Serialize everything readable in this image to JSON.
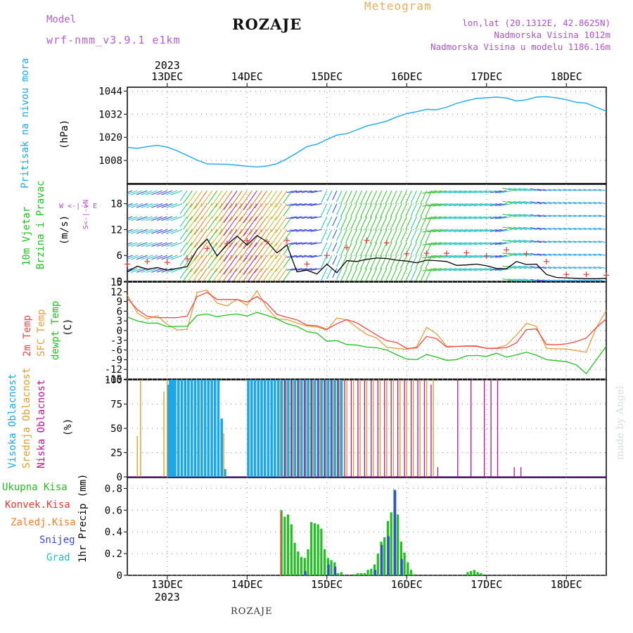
{
  "header": {
    "model_label": "Model",
    "model_name": "wrf-nmm_v3.9.1 e1km",
    "station": "ROZAJE",
    "meteogram": "Meteogram",
    "lonlat": "lon,lat (20.1312E, 42.8625N)",
    "altitude": "Nadmorska Visina 1012m",
    "model_altitude": "Nadmorska Visina u modelu 1186.16m"
  },
  "time_axis": {
    "year": "2023",
    "days": [
      "13DEC",
      "14DEC",
      "15DEC",
      "16DEC",
      "17DEC",
      "18DEC"
    ],
    "x_range_hours": [
      -12,
      132
    ]
  },
  "panels": {
    "pressure": {
      "ylabel_title": "Pritisak na nivou mora",
      "unit": "(hPa)",
      "ticks": [
        "1044",
        "1032",
        "1020",
        "1008"
      ],
      "color": "#1ca8e8"
    },
    "wind": {
      "ylabel_line1": "10m Vjetar",
      "ylabel_line2": "Brzina i Pravac",
      "unit": "(m/s)",
      "ticks": [
        "18",
        "12",
        "6",
        "0"
      ],
      "compass": "W <-|-> E",
      "compass_v": "S<-|->N"
    },
    "temp": {
      "label_2m": "2m Temp",
      "label_sfc": "SFC Temp",
      "label_dew": "dewpt Temp",
      "unit": "(C)",
      "ticks": [
        "15",
        "12",
        "9",
        "6",
        "3",
        "0",
        "-3",
        "-6",
        "-9",
        "-12",
        "-15"
      ]
    },
    "cloud": {
      "label_high": "Visoka Oblacnost",
      "label_mid": "Srednja Oblacnost",
      "label_low": "Niska Oblacnost",
      "unit": "(%)",
      "ticks": [
        "100",
        "75",
        "50",
        "25",
        "0"
      ]
    },
    "precip": {
      "legend": [
        "Ukupna Kisa",
        "Konvek.Kisa",
        "Zaledj.Kisa",
        "Snijeg",
        "Grad"
      ],
      "ylabel": "1hr Precip (mm)",
      "ticks": [
        "0.8",
        "0.6",
        "0.4",
        "0.2",
        "0"
      ]
    }
  },
  "colors": {
    "pressure": "#1ca8e8",
    "wind_speed": "#000000",
    "wind_gust": "#e83838",
    "temp_2m": "#e84848",
    "temp_sfc": "#e0a040",
    "temp_dew": "#20c020",
    "cloud_high": "#1ca8e8",
    "cloud_mid": "#d8a030",
    "cloud_low": "#c01090",
    "rain_total": "#20c020",
    "rain_conv": "#e83838",
    "rain_freezing": "#f08030",
    "snow": "#3848d8",
    "hail": "#20c0c0",
    "title_purple": "#b050d0",
    "meteogram_orange": "#e0b060"
  },
  "footer": {
    "station": "ROZAJE",
    "made_by": "made by Angel"
  },
  "chart_data": [
    {
      "type": "line",
      "title": "Pritisak na nivou mora",
      "ylabel": "(hPa)",
      "ylim": [
        996,
        1046
      ],
      "x_unit": "hours from 13DEC 00",
      "series": [
        {
          "name": "Pritisak na nivou mora",
          "x": [
            -12,
            -9,
            -6,
            -3,
            0,
            3,
            6,
            9,
            12,
            15,
            18,
            21,
            24,
            27,
            30,
            33,
            36,
            39,
            42,
            45,
            48,
            51,
            54,
            57,
            60,
            63,
            66,
            69,
            72,
            75,
            78,
            81,
            84,
            87,
            90,
            93,
            96,
            99,
            102,
            105,
            108,
            111,
            114,
            117,
            120,
            123,
            126,
            129,
            132
          ],
          "values": [
            1014.8,
            1014.3,
            1015.2,
            1015.8,
            1014.9,
            1013.0,
            1010.6,
            1008.2,
            1006.2,
            1006.1,
            1006.0,
            1005.5,
            1005.0,
            1004.6,
            1005.1,
            1006.3,
            1008.9,
            1011.9,
            1015.2,
            1016.4,
            1018.9,
            1021.2,
            1021.9,
            1023.9,
            1025.9,
            1027.1,
            1028.4,
            1030.6,
            1032.3,
            1033.3,
            1034.5,
            1034.3,
            1035.6,
            1037.6,
            1039.0,
            1040.2,
            1040.5,
            1040.9,
            1040.4,
            1038.8,
            1039.5,
            1040.9,
            1041.1,
            1040.5,
            1039.5,
            1038.2,
            1037.7,
            1035.6,
            1033.6
          ]
        }
      ]
    },
    {
      "type": "line",
      "title": "10m Vjetar Brzina i Pravac",
      "ylabel": "(m/s)",
      "ylim": [
        0,
        22.5
      ],
      "x_unit": "hours from 13DEC 00",
      "series": [
        {
          "name": "wind speed",
          "x": [
            -12,
            -9,
            -6,
            -3,
            0,
            3,
            6,
            9,
            12,
            15,
            18,
            21,
            24,
            27,
            30,
            33,
            36,
            39,
            42,
            45,
            48,
            51,
            54,
            57,
            60,
            63,
            66,
            69,
            72,
            75,
            78,
            81,
            84,
            87,
            90,
            93,
            96,
            99,
            102,
            105,
            108,
            111,
            114,
            117,
            120,
            123,
            126,
            129,
            132
          ],
          "values": [
            2.2,
            3.5,
            2.8,
            3.2,
            2.6,
            3.0,
            3.4,
            7.4,
            9.8,
            5.9,
            8.5,
            10.5,
            8.4,
            10.6,
            9.2,
            6.6,
            8.4,
            2.2,
            2.6,
            1.7,
            4.0,
            2.0,
            4.8,
            4.6,
            5.1,
            5.4,
            5.3,
            4.9,
            4.7,
            4.3,
            4.9,
            4.8,
            4.6,
            3.7,
            3.8,
            4.0,
            3.6,
            3.0,
            2.9,
            4.6,
            3.9,
            4.0,
            1.6,
            0.9,
            0.8,
            0.7,
            0.6,
            0.6,
            0.7
          ]
        },
        {
          "name": "gust",
          "x": [
            -12,
            -6,
            0,
            6,
            12,
            18,
            24,
            30,
            36,
            42,
            48,
            54,
            60,
            66,
            72,
            78,
            84,
            90,
            96,
            102,
            108,
            114,
            120,
            126,
            132
          ],
          "values": [
            4.0,
            4.6,
            4.4,
            5.2,
            7.6,
            8.8,
            9.4,
            9.2,
            9.5,
            4.0,
            6.0,
            7.8,
            9.5,
            8.9,
            6.4,
            6.5,
            6.5,
            6.6,
            5.9,
            7.3,
            6.4,
            4.6,
            1.6,
            1.6,
            1.4
          ]
        }
      ]
    },
    {
      "type": "line",
      "title": "2m Temp / SFC Temp / dewpt Temp",
      "ylabel": "(C)",
      "ylim": [
        -15,
        15
      ],
      "x_unit": "hours from 13DEC 00",
      "series": [
        {
          "name": "2m Temp",
          "x": [
            -12,
            -9,
            -6,
            -3,
            0,
            3,
            6,
            9,
            12,
            15,
            18,
            21,
            24,
            27,
            30,
            33,
            36,
            39,
            42,
            45,
            48,
            51,
            54,
            57,
            60,
            63,
            66,
            69,
            72,
            75,
            78,
            81,
            84,
            87,
            90,
            93,
            96,
            99,
            102,
            105,
            108,
            111,
            114,
            117,
            120,
            123,
            126,
            129,
            132
          ],
          "values": [
            10.0,
            6.5,
            4.4,
            4.0,
            4.0,
            4.0,
            4.5,
            10.5,
            11.8,
            9.6,
            9.6,
            9.6,
            8.8,
            10.5,
            8.4,
            5.0,
            4.1,
            3.3,
            1.7,
            1.5,
            0.4,
            2.1,
            3.4,
            2.4,
            0.5,
            -1.4,
            -3.1,
            -3.7,
            -5.5,
            -5.4,
            -1.8,
            -2.5,
            -5.1,
            -4.9,
            -4.8,
            -4.9,
            -5.5,
            -5.5,
            -5.3,
            -3.8,
            0.3,
            0.5,
            -4.3,
            -4.4,
            -4.1,
            -3.4,
            -2.3,
            0.9,
            3.6
          ]
        },
        {
          "name": "SFC Temp",
          "x": [
            -12,
            -9,
            -6,
            -3,
            0,
            3,
            6,
            9,
            12,
            15,
            18,
            21,
            24,
            27,
            30,
            33,
            36,
            39,
            42,
            45,
            48,
            51,
            54,
            57,
            60,
            63,
            66,
            69,
            72,
            75,
            78,
            81,
            84,
            87,
            90,
            93,
            96,
            99,
            102,
            105,
            108,
            111,
            114,
            117,
            120,
            123,
            126,
            129,
            132
          ],
          "values": [
            11.0,
            5.4,
            3.6,
            4.6,
            1.9,
            0.2,
            0.4,
            11.8,
            12.5,
            8.5,
            7.6,
            9.7,
            7.8,
            12.3,
            7.0,
            3.6,
            3.4,
            2.3,
            1.4,
            1.1,
            0.1,
            3.9,
            3.3,
            1.0,
            -1.2,
            -2.3,
            -5.2,
            -5.5,
            -5.8,
            -5.0,
            1.0,
            -1.0,
            -4.8,
            -4.9,
            -4.7,
            -4.7,
            -5.5,
            -5.4,
            -4.5,
            -1.4,
            2.2,
            1.3,
            -5.5,
            -5.6,
            -5.7,
            -6.2,
            -6.7,
            0.9,
            6.2
          ]
        },
        {
          "name": "dewpt Temp",
          "x": [
            -12,
            -9,
            -6,
            -3,
            0,
            3,
            6,
            9,
            12,
            15,
            18,
            21,
            24,
            27,
            30,
            33,
            36,
            39,
            42,
            45,
            48,
            51,
            54,
            57,
            60,
            63,
            66,
            69,
            72,
            75,
            78,
            81,
            84,
            87,
            90,
            93,
            96,
            99,
            102,
            105,
            108,
            111,
            114,
            117,
            120,
            123,
            126,
            129,
            132
          ],
          "values": [
            4.2,
            3.0,
            2.3,
            2.3,
            1.2,
            1.3,
            1.3,
            4.7,
            5.1,
            4.3,
            4.8,
            5.1,
            4.5,
            5.6,
            4.7,
            3.6,
            2.1,
            1.3,
            -0.3,
            -0.8,
            -3.3,
            -3.1,
            -4.3,
            -4.5,
            -5.1,
            -5.3,
            -6.0,
            -7.5,
            -8.8,
            -9.0,
            -7.4,
            -8.2,
            -9.2,
            -9.0,
            -7.8,
            -7.7,
            -8.0,
            -7.0,
            -8.2,
            -7.5,
            -6.7,
            -7.6,
            -9.0,
            -9.3,
            -9.6,
            -10.6,
            -13.3,
            -9.1,
            -4.8
          ]
        }
      ]
    },
    {
      "type": "bar",
      "title": "Visoka / Srednja / Niska Oblacnost",
      "ylabel": "(%)",
      "ylim": [
        0,
        100
      ],
      "x_unit": "hours from 13DEC 00",
      "series": [
        {
          "name": "Visoka Oblacnost",
          "x": [
            0,
            0.5,
            1,
            1.5,
            2,
            3,
            4,
            5,
            6,
            7,
            8,
            9,
            10,
            11,
            12,
            13,
            14,
            15,
            16,
            17,
            18,
            24,
            25,
            26,
            27,
            28,
            29,
            30,
            31,
            32,
            33,
            34,
            35,
            36,
            37,
            38,
            39,
            40,
            41,
            42,
            43,
            44,
            45,
            46,
            47,
            48,
            49,
            50,
            51,
            52
          ],
          "values": [
            95,
            100,
            100,
            100,
            100,
            100,
            100,
            100,
            100,
            100,
            100,
            100,
            100,
            100,
            100,
            100,
            100,
            100,
            60,
            8,
            0,
            100,
            100,
            100,
            100,
            100,
            100,
            100,
            100,
            100,
            100,
            100,
            100,
            100,
            100,
            100,
            100,
            100,
            100,
            100,
            100,
            100,
            100,
            100,
            100,
            100,
            100,
            100,
            100,
            100
          ]
        },
        {
          "name": "Srednja Oblacnost",
          "x": [
            -9,
            -8,
            -1,
            0,
            17,
            34,
            36,
            38,
            40,
            42,
            44,
            46,
            48,
            50,
            52,
            54,
            56,
            58,
            60,
            62,
            64,
            66,
            68,
            70,
            72,
            74,
            76,
            78,
            80
          ],
          "values": [
            42,
            100,
            88,
            100,
            45,
            100,
            100,
            100,
            100,
            100,
            100,
            100,
            100,
            100,
            100,
            100,
            100,
            100,
            100,
            100,
            100,
            100,
            100,
            100,
            100,
            100,
            100,
            100,
            100
          ]
        },
        {
          "name": "Niska Oblacnost",
          "x": [
            35,
            37,
            39,
            41,
            43,
            45,
            47,
            49,
            51,
            53,
            55,
            57,
            59,
            61,
            63,
            65,
            67,
            69,
            71,
            73,
            75,
            77,
            79,
            81,
            87,
            91,
            95,
            97,
            99,
            104,
            106
          ],
          "values": [
            100,
            100,
            100,
            100,
            100,
            100,
            100,
            100,
            100,
            100,
            100,
            100,
            100,
            100,
            100,
            100,
            100,
            100,
            100,
            100,
            100,
            100,
            95,
            10,
            100,
            100,
            100,
            100,
            100,
            10,
            10
          ]
        }
      ]
    },
    {
      "type": "bar",
      "title": "1hr Precip",
      "ylabel": "1hr Precip (mm)",
      "ylim": [
        0,
        0.9
      ],
      "x_unit": "hours from 13DEC 00",
      "series": [
        {
          "name": "Ukupna Kisa",
          "x": [
            34,
            35,
            36,
            37,
            38,
            39,
            40,
            41,
            42,
            43,
            44,
            45,
            46,
            47,
            48,
            49,
            50,
            51,
            52,
            56,
            57,
            58,
            59,
            60,
            61,
            62,
            63,
            64,
            65,
            66,
            67,
            68,
            69,
            70,
            71,
            72,
            73,
            74,
            90,
            91,
            92,
            93,
            94
          ],
          "values": [
            0.6,
            0.54,
            0.56,
            0.47,
            0.3,
            0.22,
            0.17,
            0.16,
            0.24,
            0.49,
            0.48,
            0.47,
            0.43,
            0.24,
            0.16,
            0.14,
            0.12,
            0.02,
            0.03,
            0.01,
            0.02,
            0.02,
            0.02,
            0.05,
            0.06,
            0.1,
            0.2,
            0.31,
            0.35,
            0.5,
            0.58,
            0.79,
            0.56,
            0.31,
            0.21,
            0.12,
            0.05,
            0.01,
            0.03,
            0.04,
            0.05,
            0.03,
            0.02
          ]
        },
        {
          "name": "Konvek.Kisa",
          "x": [
            34
          ],
          "values": [
            0.58
          ]
        },
        {
          "name": "Snijeg",
          "x": [
            41,
            48,
            50,
            62,
            64,
            66,
            68,
            70
          ],
          "values": [
            0.04,
            0.1,
            0.08,
            0.05,
            0.28,
            0.36,
            0.78,
            0.15
          ]
        }
      ]
    }
  ]
}
